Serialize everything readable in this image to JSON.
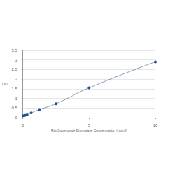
{
  "chart_data": {
    "type": "line",
    "x_label": "Rat Superoxide Dismutase Concentration (ng/ml)",
    "y_label": "OD",
    "x": [
      0,
      0.156,
      0.3125,
      0.625,
      1.25,
      2.5,
      5,
      10
    ],
    "values": [
      0.1,
      0.12,
      0.15,
      0.25,
      0.42,
      0.72,
      1.55,
      2.9
    ],
    "color": "#1f4e8c",
    "marker": "circle",
    "xlim": [
      0,
      10
    ],
    "xticks": [
      0,
      5,
      10
    ],
    "ylim": [
      0,
      3.5
    ],
    "yticks": [
      0,
      0.5,
      1,
      1.5,
      2,
      2.5,
      3,
      3.5
    ],
    "grid": true
  }
}
